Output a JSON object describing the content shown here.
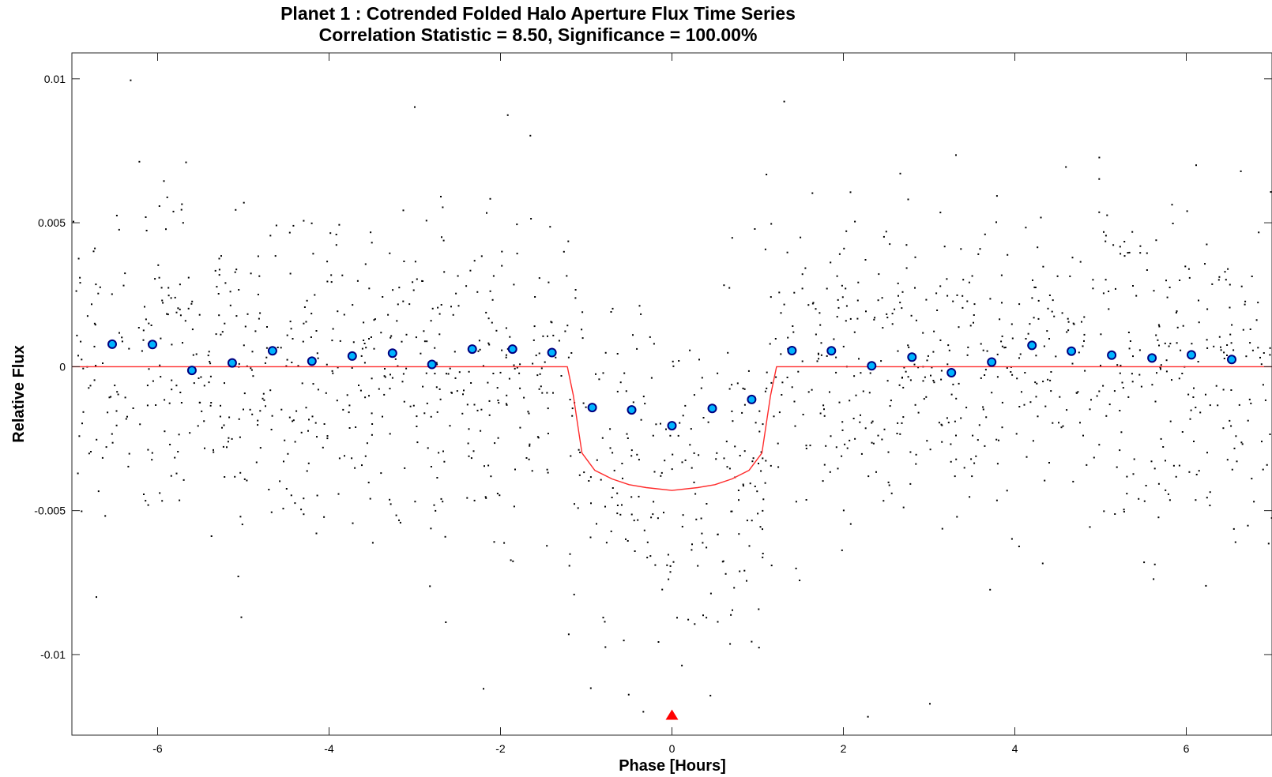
{
  "chart_data": {
    "type": "scatter",
    "title": "Planet 1 : Cotrended Folded Halo Aperture Flux Time Series",
    "subtitle": "Correlation Statistic = 8.50, Significance = 100.00%",
    "xlabel": "Phase [Hours]",
    "ylabel": "Relative Flux",
    "xlim": [
      -7,
      7
    ],
    "ylim": [
      -0.0128,
      0.0109
    ],
    "x_ticks": [
      -6,
      -4,
      -2,
      0,
      2,
      4,
      6
    ],
    "x_tick_labels": [
      "-6",
      "-4",
      "-2",
      "0",
      "2",
      "4",
      "6"
    ],
    "y_ticks": [
      0.01,
      0.005,
      0,
      -0.005,
      -0.01
    ],
    "y_tick_labels": [
      "0.01",
      "0.005",
      "0",
      "-0.005",
      "-0.01"
    ],
    "grid": false,
    "colors": {
      "raw_points": "#000000",
      "binned_fill": "#00b4ff",
      "binned_edge": "#000080",
      "model": "#ff2a2a",
      "marker": "#ff0000"
    },
    "series": [
      {
        "kind": "binned-points",
        "x": [
          -6.53,
          -6.06,
          -5.6,
          -5.13,
          -4.66,
          -4.2,
          -3.73,
          -3.26,
          -2.8,
          -2.33,
          -1.86,
          -1.4,
          -0.93,
          -0.47,
          0.0,
          0.47,
          0.93,
          1.4,
          1.86,
          2.33,
          2.8,
          3.26,
          3.73,
          4.2,
          4.66,
          5.13,
          5.6,
          6.06,
          6.53
        ],
        "y": [
          0.00078,
          0.00077,
          -0.00013,
          0.00013,
          0.00055,
          0.00019,
          0.00037,
          0.00047,
          8e-05,
          0.00061,
          0.00061,
          0.00049,
          -0.00142,
          -0.0015,
          -0.00205,
          -0.00145,
          -0.00114,
          0.00056,
          0.00055,
          3e-05,
          0.00033,
          -0.00021,
          0.00016,
          0.00074,
          0.00054,
          0.0004,
          0.0003,
          0.00041,
          0.00025
        ]
      },
      {
        "kind": "transit-model",
        "x": [
          -7,
          -1.22,
          -1.15,
          -1.1,
          -1.05,
          -0.9,
          -0.7,
          -0.5,
          -0.3,
          0,
          0.3,
          0.5,
          0.7,
          0.9,
          1.05,
          1.1,
          1.15,
          1.22,
          7
        ],
        "y": [
          0,
          0,
          -0.001,
          -0.002,
          -0.003,
          -0.0036,
          -0.0039,
          -0.0041,
          -0.0042,
          -0.0043,
          -0.0042,
          -0.0041,
          -0.0039,
          -0.0036,
          -0.003,
          -0.002,
          -0.001,
          0,
          0
        ]
      },
      {
        "kind": "epoch-marker",
        "x": [
          0
        ],
        "y": [
          -0.0121
        ]
      }
    ]
  }
}
